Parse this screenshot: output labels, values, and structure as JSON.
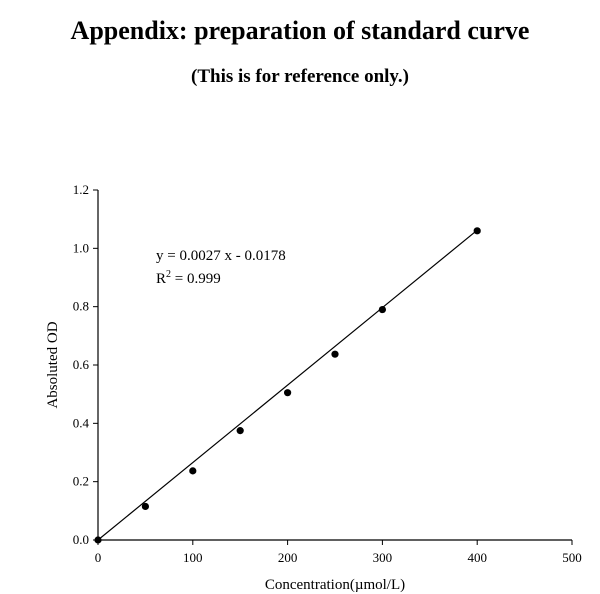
{
  "header": {
    "title": "Appendix: preparation of standard curve",
    "subtitle": "(This is for reference only.)"
  },
  "chart_data": {
    "type": "scatter",
    "x": [
      0,
      50,
      100,
      150,
      200,
      250,
      300,
      400
    ],
    "y": [
      0.0,
      0.115,
      0.237,
      0.375,
      0.505,
      0.637,
      0.79,
      1.06
    ],
    "xlabel": "Concentration(µmol/L)",
    "ylabel": "Absoluted OD",
    "xlim": [
      0,
      500
    ],
    "ylim": [
      0,
      1.2
    ],
    "xticks": [
      "0",
      "100",
      "200",
      "300",
      "400",
      "500"
    ],
    "yticks": [
      "0.0",
      "0.2",
      "0.4",
      "0.6",
      "0.8",
      "1.0",
      "1.2"
    ],
    "trendline": {
      "slope": 0.0027,
      "intercept": -0.0178,
      "x_range": [
        0,
        400
      ]
    },
    "annotations": {
      "equation": "y = 0.0027 x - 0.0178",
      "r2_prefix": "R",
      "r2_sup": "2",
      "r2_value": " = 0.999"
    },
    "grid": false,
    "legend": "none"
  }
}
